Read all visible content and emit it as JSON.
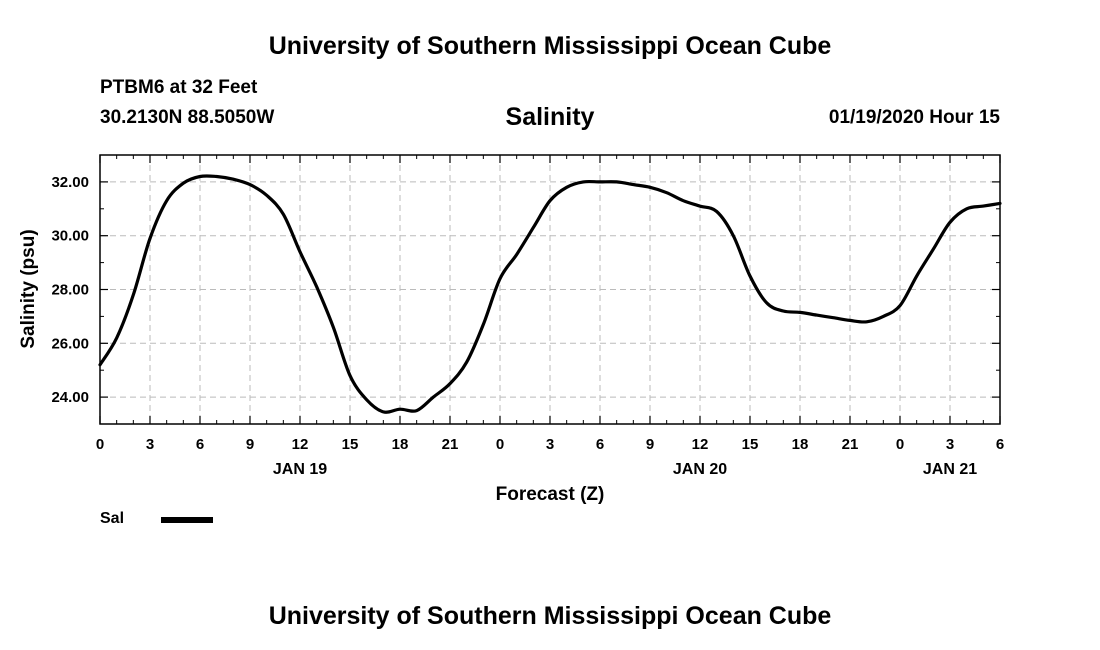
{
  "header": {
    "top_title": "University of Southern Mississippi Ocean Cube",
    "station": "PTBM6 at 32 Feet",
    "coords": "30.2130N 88.5050W",
    "datetime": "01/19/2020 Hour 15",
    "bottom_title": "University of Southern Mississippi Ocean Cube"
  },
  "chart_data": {
    "type": "line",
    "title": "Salinity",
    "xlabel": "Forecast (Z)",
    "ylabel": "Salinity (psu)",
    "xlim": [
      0,
      54
    ],
    "ylim": [
      23.0,
      33.0
    ],
    "yticks": [
      24.0,
      26.0,
      28.0,
      30.0,
      32.0
    ],
    "ytick_labels": [
      "24.00",
      "26.00",
      "28.00",
      "30.00",
      "32.00"
    ],
    "xticks": [
      0,
      3,
      6,
      9,
      12,
      15,
      18,
      21,
      24,
      27,
      30,
      33,
      36,
      39,
      42,
      45,
      48,
      51,
      54
    ],
    "xtick_labels": [
      "0",
      "3",
      "6",
      "9",
      "12",
      "15",
      "18",
      "21",
      "0",
      "3",
      "6",
      "9",
      "12",
      "15",
      "18",
      "21",
      "0",
      "3",
      "6"
    ],
    "date_labels": [
      {
        "x": 12,
        "label": "JAN 19"
      },
      {
        "x": 36,
        "label": "JAN 20"
      },
      {
        "x": 51,
        "label": "JAN 21"
      }
    ],
    "grid": true,
    "series": [
      {
        "name": "Sal",
        "color": "#000000",
        "x": [
          0,
          1,
          2,
          3,
          4,
          5,
          6,
          7,
          8,
          9,
          10,
          11,
          12,
          13,
          14,
          15,
          16,
          17,
          18,
          19,
          20,
          21,
          22,
          23,
          24,
          25,
          26,
          27,
          28,
          29,
          30,
          31,
          32,
          33,
          34,
          35,
          36,
          37,
          38,
          39,
          40,
          41,
          42,
          43,
          44,
          45,
          46,
          47,
          48,
          49,
          50,
          51,
          52,
          53,
          54
        ],
        "values": [
          25.2,
          26.2,
          27.8,
          29.9,
          31.3,
          31.95,
          32.2,
          32.2,
          32.1,
          31.9,
          31.5,
          30.8,
          29.4,
          28.1,
          26.6,
          24.8,
          23.9,
          23.45,
          23.55,
          23.5,
          24.0,
          24.5,
          25.3,
          26.7,
          28.4,
          29.3,
          30.3,
          31.3,
          31.8,
          32.0,
          32.0,
          32.0,
          31.9,
          31.8,
          31.6,
          31.3,
          31.1,
          30.9,
          30.0,
          28.5,
          27.5,
          27.2,
          27.15,
          27.05,
          26.95,
          26.85,
          26.8,
          27.0,
          27.4,
          28.5,
          29.5,
          30.5,
          31.0,
          31.1,
          31.2
        ]
      }
    ],
    "legend": {
      "placement": "bottom-left",
      "label": "Sal",
      "color": "#000000"
    }
  }
}
